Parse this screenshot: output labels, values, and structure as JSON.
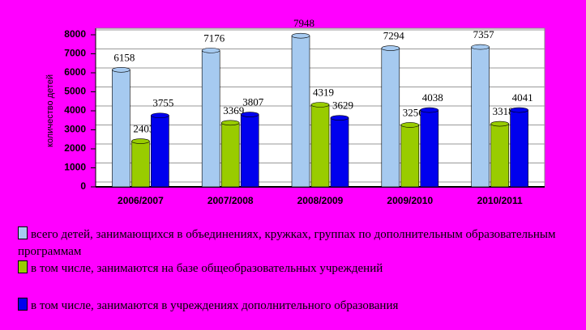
{
  "chart_data": {
    "type": "bar",
    "y_label": "количество детей",
    "categories": [
      "2006/2007",
      "2007/2008",
      "2008/2009",
      "2009/2010",
      "2010/2011"
    ],
    "series": [
      {
        "name": "всего детей, занимающихся в объединениях, кружках, группах по дополнительным образовательным программам",
        "color": "#a6caf0",
        "values": [
          6158,
          7176,
          7948,
          7294,
          7357
        ]
      },
      {
        "name": "в том числе, занимаются на базе общеобразовательных учреждений",
        "color": "#99cc00",
        "values": [
          2403,
          3369,
          4319,
          3256,
          3318
        ]
      },
      {
        "name": "в том числе, занимаются в учреждениях дополнительного образования",
        "color": "#0000ee",
        "values": [
          3755,
          3807,
          3629,
          4038,
          4041
        ]
      }
    ],
    "ylim": [
      0,
      8000
    ],
    "yticks": [
      0,
      1000,
      2000,
      3000,
      4000,
      5000,
      6000,
      7000,
      8000
    ],
    "grid": true
  }
}
